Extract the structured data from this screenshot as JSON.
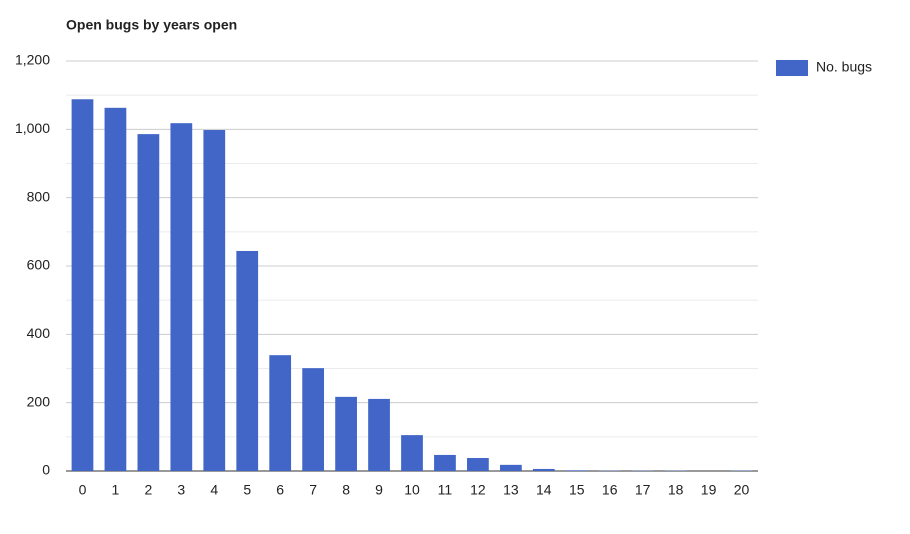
{
  "chart_data": {
    "type": "bar",
    "title": "Open bugs by years open",
    "categories": [
      "0",
      "1",
      "2",
      "3",
      "4",
      "5",
      "6",
      "7",
      "8",
      "9",
      "10",
      "11",
      "12",
      "13",
      "14",
      "15",
      "16",
      "17",
      "18",
      "19",
      "20"
    ],
    "series": [
      {
        "name": "No. bugs",
        "color": "#4166c8",
        "values": [
          1088,
          1063,
          986,
          1018,
          998,
          644,
          339,
          301,
          217,
          211,
          105,
          47,
          38,
          18,
          6,
          2,
          1,
          1,
          1,
          0,
          1
        ]
      }
    ],
    "ylim": [
      0,
      1200
    ],
    "yticks": [
      0,
      200,
      400,
      600,
      800,
      {
        "value": 1000,
        "label": "1,000"
      },
      {
        "value": 1200,
        "label": "1,200"
      }
    ],
    "grid": true,
    "minor_grid": true,
    "legend": "right"
  }
}
